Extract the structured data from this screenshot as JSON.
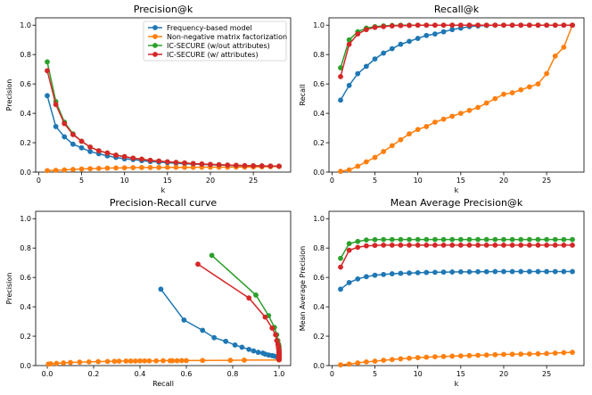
{
  "colors": {
    "Frequency-based model": "#1f77b4",
    "Non-negative matrix factorization": "#ff7f0e",
    "IC-SECURE (w/out attributes)": "#2ca02c",
    "IC-SECURE (w/ attributes)": "#d62728"
  },
  "chart_data": [
    {
      "id": "precision_at_k",
      "type": "line",
      "title": "Precision@k",
      "xlabel": "k",
      "ylabel": "Precision",
      "xlim": [
        -0.35,
        29.35
      ],
      "ylim": [
        0,
        1.05
      ],
      "xticks": [
        0,
        5,
        10,
        15,
        20,
        25
      ],
      "yticks": [
        0.0,
        0.2,
        0.4,
        0.6,
        0.8,
        1.0
      ],
      "legend": {
        "position": "top-right",
        "entries": [
          "Frequency-based model",
          "Non-negative matrix factorization",
          "IC-SECURE (w/out attributes)",
          "IC-SECURE (w/ attributes)"
        ]
      },
      "series": [
        {
          "name": "Frequency-based model",
          "x": [
            1,
            2,
            3,
            4,
            5,
            6,
            7,
            8,
            9,
            10,
            11,
            12,
            13,
            14,
            15,
            16,
            17,
            18,
            19,
            20,
            21,
            22,
            23,
            24,
            25,
            26,
            27,
            28
          ],
          "y": [
            0.52,
            0.31,
            0.24,
            0.19,
            0.165,
            0.14,
            0.125,
            0.11,
            0.1,
            0.09,
            0.085,
            0.078,
            0.072,
            0.068,
            0.064,
            0.06,
            0.057,
            0.054,
            0.052,
            0.05,
            0.048,
            0.046,
            0.044,
            0.043,
            0.042,
            0.041,
            0.04,
            0.04
          ]
        },
        {
          "name": "Non-negative matrix factorization",
          "x": [
            1,
            2,
            3,
            4,
            5,
            6,
            7,
            8,
            9,
            10,
            11,
            12,
            13,
            14,
            15,
            16,
            17,
            18,
            19,
            20,
            21,
            22,
            23,
            24,
            25,
            26,
            27,
            28
          ],
          "y": [
            0.01,
            0.012,
            0.015,
            0.018,
            0.021,
            0.023,
            0.025,
            0.027,
            0.028,
            0.029,
            0.03,
            0.031,
            0.031,
            0.031,
            0.032,
            0.032,
            0.032,
            0.032,
            0.033,
            0.033,
            0.033,
            0.033,
            0.034,
            0.034,
            0.035,
            0.036,
            0.037,
            0.038
          ]
        },
        {
          "name": "IC-SECURE (w/out attributes)",
          "x": [
            1,
            2,
            3,
            4,
            5,
            6,
            7,
            8,
            9,
            10,
            11,
            12,
            13,
            14,
            15,
            16,
            17,
            18,
            19,
            20,
            21,
            22,
            23,
            24,
            25,
            26,
            27,
            28
          ],
          "y": [
            0.75,
            0.48,
            0.34,
            0.26,
            0.21,
            0.17,
            0.145,
            0.13,
            0.115,
            0.105,
            0.095,
            0.088,
            0.08,
            0.075,
            0.07,
            0.066,
            0.062,
            0.058,
            0.055,
            0.052,
            0.05,
            0.048,
            0.046,
            0.044,
            0.043,
            0.042,
            0.041,
            0.04
          ]
        },
        {
          "name": "IC-SECURE (w/ attributes)",
          "x": [
            1,
            2,
            3,
            4,
            5,
            6,
            7,
            8,
            9,
            10,
            11,
            12,
            13,
            14,
            15,
            16,
            17,
            18,
            19,
            20,
            21,
            22,
            23,
            24,
            25,
            26,
            27,
            28
          ],
          "y": [
            0.69,
            0.46,
            0.33,
            0.255,
            0.21,
            0.17,
            0.145,
            0.13,
            0.115,
            0.105,
            0.095,
            0.088,
            0.08,
            0.075,
            0.07,
            0.066,
            0.062,
            0.058,
            0.055,
            0.052,
            0.05,
            0.048,
            0.046,
            0.044,
            0.043,
            0.042,
            0.041,
            0.04
          ]
        }
      ]
    },
    {
      "id": "recall_at_k",
      "type": "line",
      "title": "Recall@k",
      "xlabel": "k",
      "ylabel": "Recall",
      "xlim": [
        -0.35,
        29.35
      ],
      "ylim": [
        0,
        1.05
      ],
      "xticks": [
        0,
        5,
        10,
        15,
        20,
        25
      ],
      "yticks": [
        0.0,
        0.2,
        0.4,
        0.6,
        0.8,
        1.0
      ],
      "series": [
        {
          "name": "Frequency-based model",
          "x": [
            1,
            2,
            3,
            4,
            5,
            6,
            7,
            8,
            9,
            10,
            11,
            12,
            13,
            14,
            15,
            16,
            17,
            18,
            19,
            20,
            21,
            22,
            23,
            24,
            25,
            26,
            27,
            28
          ],
          "y": [
            0.49,
            0.59,
            0.67,
            0.72,
            0.77,
            0.81,
            0.84,
            0.87,
            0.89,
            0.91,
            0.93,
            0.94,
            0.955,
            0.97,
            0.98,
            0.99,
            0.995,
            0.998,
            1.0,
            1.0,
            1.0,
            1.0,
            1.0,
            1.0,
            1.0,
            1.0,
            1.0,
            1.0
          ]
        },
        {
          "name": "Non-negative matrix factorization",
          "x": [
            1,
            2,
            3,
            4,
            5,
            6,
            7,
            8,
            9,
            10,
            11,
            12,
            13,
            14,
            15,
            16,
            17,
            18,
            19,
            20,
            21,
            22,
            23,
            24,
            25,
            26,
            27,
            28
          ],
          "y": [
            0.005,
            0.015,
            0.04,
            0.07,
            0.1,
            0.14,
            0.18,
            0.22,
            0.26,
            0.29,
            0.31,
            0.34,
            0.36,
            0.38,
            0.4,
            0.42,
            0.44,
            0.47,
            0.5,
            0.53,
            0.54,
            0.56,
            0.58,
            0.6,
            0.67,
            0.79,
            0.85,
            1.0
          ]
        },
        {
          "name": "IC-SECURE (w/out attributes)",
          "x": [
            1,
            2,
            3,
            4,
            5,
            6,
            7,
            8,
            9,
            10,
            11,
            12,
            13,
            14,
            15,
            16,
            17,
            18,
            19,
            20,
            21,
            22,
            23,
            24,
            25,
            26,
            27,
            28
          ],
          "y": [
            0.71,
            0.9,
            0.955,
            0.98,
            0.99,
            0.995,
            0.998,
            1.0,
            1.0,
            1.0,
            1.0,
            1.0,
            1.0,
            1.0,
            1.0,
            1.0,
            1.0,
            1.0,
            1.0,
            1.0,
            1.0,
            1.0,
            1.0,
            1.0,
            1.0,
            1.0,
            1.0,
            1.0
          ]
        },
        {
          "name": "IC-SECURE (w/ attributes)",
          "x": [
            1,
            2,
            3,
            4,
            5,
            6,
            7,
            8,
            9,
            10,
            11,
            12,
            13,
            14,
            15,
            16,
            17,
            18,
            19,
            20,
            21,
            22,
            23,
            24,
            25,
            26,
            27,
            28
          ],
          "y": [
            0.65,
            0.87,
            0.94,
            0.97,
            0.985,
            0.99,
            0.995,
            0.997,
            0.998,
            1.0,
            1.0,
            1.0,
            1.0,
            1.0,
            1.0,
            1.0,
            1.0,
            1.0,
            1.0,
            1.0,
            1.0,
            1.0,
            1.0,
            1.0,
            1.0,
            1.0,
            1.0,
            1.0
          ]
        }
      ]
    },
    {
      "id": "precision_recall_curve",
      "type": "line",
      "title": "Precision-Recall curve",
      "xlabel": "Recall",
      "ylabel": "Precision",
      "xlim": [
        -0.05,
        1.05
      ],
      "ylim": [
        0,
        1.05
      ],
      "xticks": [
        0.0,
        0.2,
        0.4,
        0.6,
        0.8,
        1.0
      ],
      "yticks": [
        0.0,
        0.2,
        0.4,
        0.6,
        0.8,
        1.0
      ],
      "series": [
        {
          "name": "Frequency-based model",
          "x": [
            0.49,
            0.59,
            0.67,
            0.72,
            0.77,
            0.81,
            0.84,
            0.87,
            0.89,
            0.91,
            0.93,
            0.94,
            0.955,
            0.97,
            0.98,
            0.99,
            0.995,
            0.998,
            1.0,
            1.0,
            1.0,
            1.0,
            1.0,
            1.0,
            1.0,
            1.0,
            1.0,
            1.0
          ],
          "y": [
            0.52,
            0.31,
            0.24,
            0.19,
            0.165,
            0.14,
            0.125,
            0.11,
            0.1,
            0.09,
            0.085,
            0.078,
            0.072,
            0.068,
            0.064,
            0.06,
            0.057,
            0.054,
            0.052,
            0.05,
            0.048,
            0.046,
            0.044,
            0.043,
            0.042,
            0.041,
            0.04,
            0.04
          ]
        },
        {
          "name": "Non-negative matrix factorization",
          "x": [
            0.005,
            0.015,
            0.04,
            0.07,
            0.1,
            0.14,
            0.18,
            0.22,
            0.26,
            0.29,
            0.31,
            0.34,
            0.36,
            0.38,
            0.4,
            0.42,
            0.44,
            0.47,
            0.5,
            0.53,
            0.54,
            0.56,
            0.58,
            0.6,
            0.67,
            0.79,
            0.85,
            1.0
          ],
          "y": [
            0.01,
            0.012,
            0.015,
            0.018,
            0.021,
            0.023,
            0.025,
            0.027,
            0.028,
            0.029,
            0.03,
            0.031,
            0.031,
            0.031,
            0.032,
            0.032,
            0.032,
            0.032,
            0.033,
            0.033,
            0.033,
            0.033,
            0.034,
            0.034,
            0.035,
            0.036,
            0.037,
            0.038
          ]
        },
        {
          "name": "IC-SECURE (w/out attributes)",
          "x": [
            0.71,
            0.9,
            0.955,
            0.98,
            0.99,
            0.995,
            0.998,
            1.0,
            1.0,
            1.0,
            1.0,
            1.0,
            1.0,
            1.0,
            1.0,
            1.0,
            1.0,
            1.0,
            1.0,
            1.0,
            1.0,
            1.0,
            1.0,
            1.0,
            1.0,
            1.0,
            1.0,
            1.0
          ],
          "y": [
            0.75,
            0.48,
            0.34,
            0.26,
            0.21,
            0.17,
            0.145,
            0.13,
            0.115,
            0.105,
            0.095,
            0.088,
            0.08,
            0.075,
            0.07,
            0.066,
            0.062,
            0.058,
            0.055,
            0.052,
            0.05,
            0.048,
            0.046,
            0.044,
            0.043,
            0.042,
            0.041,
            0.04
          ]
        },
        {
          "name": "IC-SECURE (w/ attributes)",
          "x": [
            0.65,
            0.87,
            0.94,
            0.97,
            0.985,
            0.99,
            0.995,
            0.997,
            0.998,
            1.0,
            1.0,
            1.0,
            1.0,
            1.0,
            1.0,
            1.0,
            1.0,
            1.0,
            1.0,
            1.0,
            1.0,
            1.0,
            1.0,
            1.0,
            1.0,
            1.0,
            1.0,
            1.0
          ],
          "y": [
            0.69,
            0.46,
            0.33,
            0.255,
            0.21,
            0.17,
            0.145,
            0.13,
            0.115,
            0.105,
            0.095,
            0.088,
            0.08,
            0.075,
            0.07,
            0.066,
            0.062,
            0.058,
            0.055,
            0.052,
            0.05,
            0.048,
            0.046,
            0.044,
            0.043,
            0.042,
            0.041,
            0.04
          ]
        }
      ]
    },
    {
      "id": "map_at_k",
      "type": "line",
      "title": "Mean Average Precision@k",
      "xlabel": "k",
      "ylabel": "Mean Average Precision",
      "xlim": [
        -0.35,
        29.35
      ],
      "ylim": [
        0,
        1.05
      ],
      "xticks": [
        0,
        5,
        10,
        15,
        20,
        25
      ],
      "yticks": [
        0.0,
        0.2,
        0.4,
        0.6,
        0.8,
        1.0
      ],
      "series": [
        {
          "name": "Frequency-based model",
          "x": [
            1,
            2,
            3,
            4,
            5,
            6,
            7,
            8,
            9,
            10,
            11,
            12,
            13,
            14,
            15,
            16,
            17,
            18,
            19,
            20,
            21,
            22,
            23,
            24,
            25,
            26,
            27,
            28
          ],
          "y": [
            0.52,
            0.565,
            0.59,
            0.605,
            0.615,
            0.62,
            0.625,
            0.628,
            0.63,
            0.632,
            0.634,
            0.635,
            0.636,
            0.637,
            0.638,
            0.638,
            0.639,
            0.639,
            0.64,
            0.64,
            0.64,
            0.64,
            0.64,
            0.64,
            0.64,
            0.64,
            0.64,
            0.64
          ]
        },
        {
          "name": "Non-negative matrix factorization",
          "x": [
            1,
            2,
            3,
            4,
            5,
            6,
            7,
            8,
            9,
            10,
            11,
            12,
            13,
            14,
            15,
            16,
            17,
            18,
            19,
            20,
            21,
            22,
            23,
            24,
            25,
            26,
            27,
            28
          ],
          "y": [
            0.005,
            0.01,
            0.018,
            0.025,
            0.03,
            0.036,
            0.041,
            0.046,
            0.05,
            0.054,
            0.057,
            0.06,
            0.062,
            0.064,
            0.066,
            0.068,
            0.07,
            0.072,
            0.074,
            0.076,
            0.077,
            0.078,
            0.079,
            0.08,
            0.082,
            0.085,
            0.088,
            0.09
          ]
        },
        {
          "name": "IC-SECURE (w/out attributes)",
          "x": [
            1,
            2,
            3,
            4,
            5,
            6,
            7,
            8,
            9,
            10,
            11,
            12,
            13,
            14,
            15,
            16,
            17,
            18,
            19,
            20,
            21,
            22,
            23,
            24,
            25,
            26,
            27,
            28
          ],
          "y": [
            0.73,
            0.83,
            0.845,
            0.855,
            0.857,
            0.858,
            0.858,
            0.858,
            0.858,
            0.858,
            0.858,
            0.858,
            0.858,
            0.858,
            0.858,
            0.858,
            0.858,
            0.858,
            0.858,
            0.858,
            0.858,
            0.858,
            0.858,
            0.858,
            0.858,
            0.858,
            0.858,
            0.858
          ]
        },
        {
          "name": "IC-SECURE (w/ attributes)",
          "x": [
            1,
            2,
            3,
            4,
            5,
            6,
            7,
            8,
            9,
            10,
            11,
            12,
            13,
            14,
            15,
            16,
            17,
            18,
            19,
            20,
            21,
            22,
            23,
            24,
            25,
            26,
            27,
            28
          ],
          "y": [
            0.67,
            0.785,
            0.805,
            0.815,
            0.818,
            0.82,
            0.82,
            0.82,
            0.82,
            0.82,
            0.82,
            0.82,
            0.82,
            0.82,
            0.82,
            0.82,
            0.82,
            0.82,
            0.82,
            0.82,
            0.82,
            0.82,
            0.82,
            0.82,
            0.82,
            0.82,
            0.82,
            0.82
          ]
        }
      ]
    }
  ]
}
